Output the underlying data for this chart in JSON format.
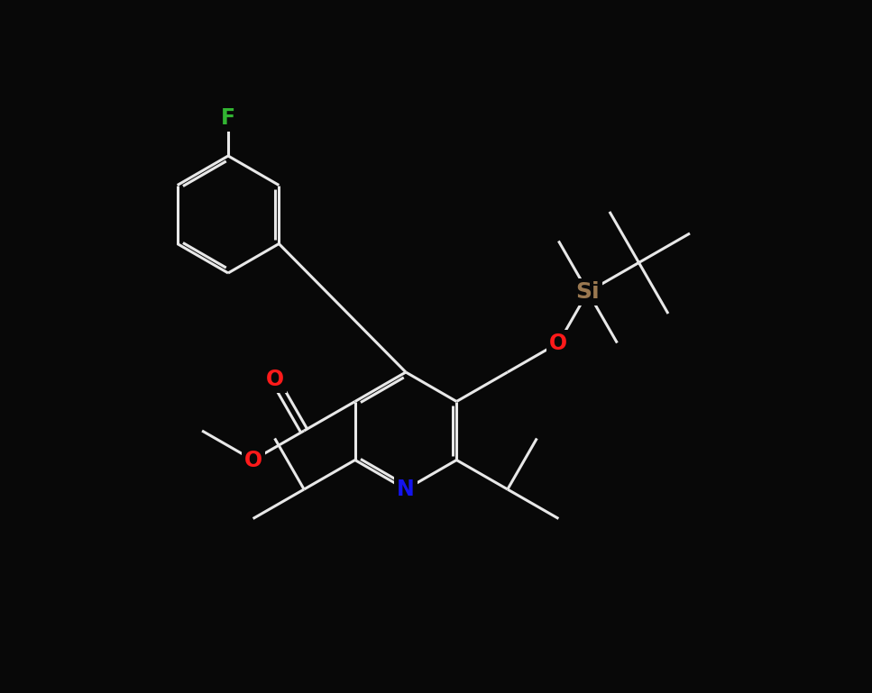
{
  "background": "#080808",
  "bond_color": "#e8e8e8",
  "bond_lw": 2.2,
  "font_size": 17,
  "colors": {
    "F": "#32b432",
    "O": "#ff1a1a",
    "N": "#1414ee",
    "Si": "#9a7850",
    "C": "#e8e8e8"
  },
  "figsize": [
    9.67,
    7.69
  ],
  "dpi": 100,
  "xlim": [
    0,
    967
  ],
  "ylim": [
    769,
    0
  ]
}
